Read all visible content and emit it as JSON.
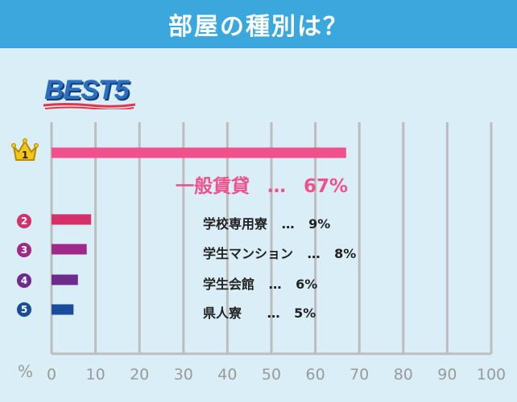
{
  "header": {
    "title": "部屋の種別は？"
  },
  "badge": {
    "text": "BEST5"
  },
  "axis": {
    "unit_label": "%"
  },
  "labels": [
    {
      "rank": "1",
      "name": "一般賃貸",
      "sep": "…",
      "value_text": "67%"
    },
    {
      "rank": "2",
      "name": "学校専用寮",
      "sep": "…",
      "value_text": "9%"
    },
    {
      "rank": "3",
      "name": "学生マンション",
      "sep": "…",
      "value_text": "8%"
    },
    {
      "rank": "4",
      "name": "学生会館",
      "sep": "…",
      "value_text": "6%"
    },
    {
      "rank": "5",
      "name": "県人寮",
      "sep": "…",
      "value_text": "5%"
    }
  ],
  "chart_data": {
    "type": "bar",
    "orientation": "horizontal",
    "categories": [
      "一般賃貸",
      "学校専用寮",
      "学生マンション",
      "学生会館",
      "県人寮"
    ],
    "values": [
      67,
      9,
      8,
      6,
      5
    ],
    "colors": [
      "#f0508c",
      "#d4306a",
      "#a0288a",
      "#6e2a8e",
      "#1a4c9c"
    ],
    "xlim": [
      0,
      100
    ],
    "xticks": [
      0,
      10,
      20,
      30,
      40,
      50,
      60,
      70,
      80,
      90,
      100
    ],
    "grid": true
  }
}
